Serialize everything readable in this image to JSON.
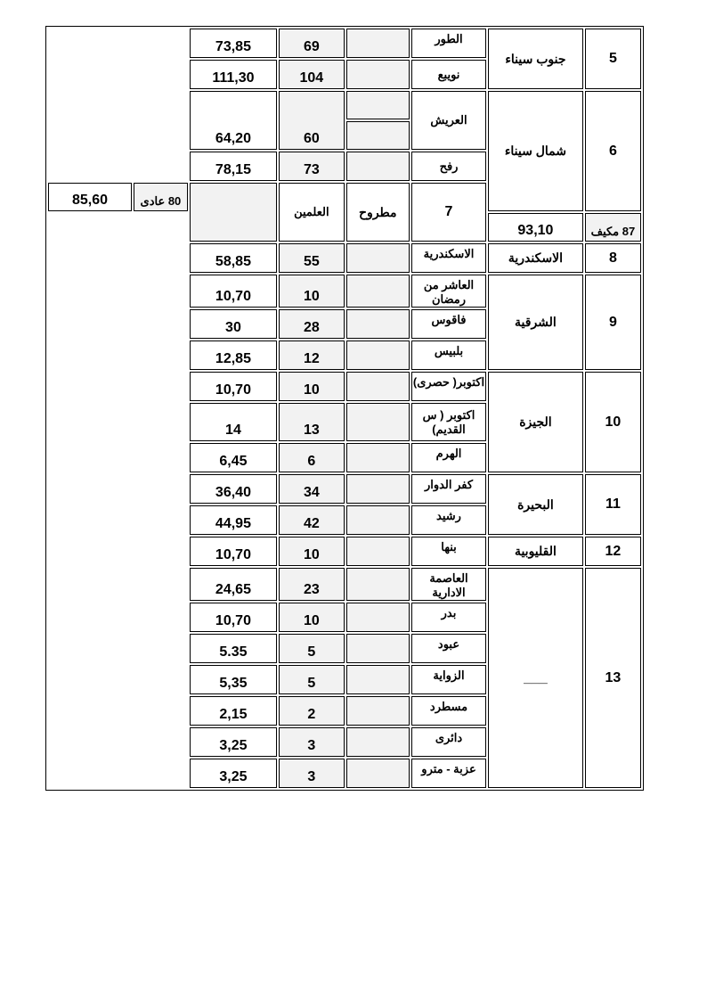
{
  "groups": [
    {
      "index": "5",
      "governorate": "جنوب سيناء",
      "items": [
        {
          "city": "الطور",
          "fare": "69",
          "price": "73,85"
        },
        {
          "city": "نويبع",
          "fare": "104",
          "price": "111,30"
        }
      ]
    },
    {
      "index": "6",
      "governorate": "شمال سيناء",
      "items": [
        {
          "city": "العريش",
          "fare": "60",
          "price": "64,20"
        },
        {
          "city": "رفح",
          "fare": "73",
          "price": "78,15"
        }
      ]
    },
    {
      "index": "7",
      "governorate": "مطروح",
      "items": [
        {
          "city": "العلمين",
          "fare": "80 عادى",
          "price": "85,60"
        },
        {
          "fare": "87 مكيف",
          "price": "93,10"
        }
      ]
    },
    {
      "index": "8",
      "governorate": "الاسكندرية",
      "items": [
        {
          "city": "الاسكندرية",
          "fare": "55",
          "price": "58,85"
        }
      ]
    },
    {
      "index": "9",
      "governorate": "الشرقية",
      "items": [
        {
          "city": "العاشر من رمضان",
          "fare": "10",
          "price": "10,70"
        },
        {
          "city": "فاقوس",
          "fare": "28",
          "price": "30"
        },
        {
          "city": "بلبيس",
          "fare": "12",
          "price": "12,85"
        }
      ]
    },
    {
      "index": "10",
      "governorate": "الجيزة",
      "items": [
        {
          "city": "اكتوبر( حصرى)",
          "fare": "10",
          "price": "10,70"
        },
        {
          "city": "اكتوبر ( س القديم)",
          "fare": "13",
          "price": "14"
        },
        {
          "city": "الهرم",
          "fare": "6",
          "price": "6,45"
        }
      ]
    },
    {
      "index": "11",
      "governorate": "البحيرة",
      "items": [
        {
          "city": "كفر الدوار",
          "fare": "34",
          "price": "36,40"
        },
        {
          "city": "رشيد",
          "fare": "42",
          "price": "44,95"
        }
      ]
    },
    {
      "index": "12",
      "governorate": "القليوبية",
      "items": [
        {
          "city": "بنها",
          "fare": "10",
          "price": "10,70"
        }
      ]
    },
    {
      "index": "13",
      "governorate": "___",
      "items": [
        {
          "city": "العاصمة الادارية",
          "fare": "23",
          "price": "24,65"
        },
        {
          "city": "بدر",
          "fare": "10",
          "price": "10,70"
        },
        {
          "city": "عبود",
          "fare": "5",
          "price": "5.35"
        },
        {
          "city": "الزواية",
          "fare": "5",
          "price": "5,35"
        },
        {
          "city": "مسطرد",
          "fare": "2",
          "price": "2,15"
        },
        {
          "city": "دائرى",
          "fare": "3",
          "price": "3,25"
        },
        {
          "city": "عزبة - مترو",
          "fare": "3",
          "price": "3,25"
        }
      ]
    }
  ]
}
